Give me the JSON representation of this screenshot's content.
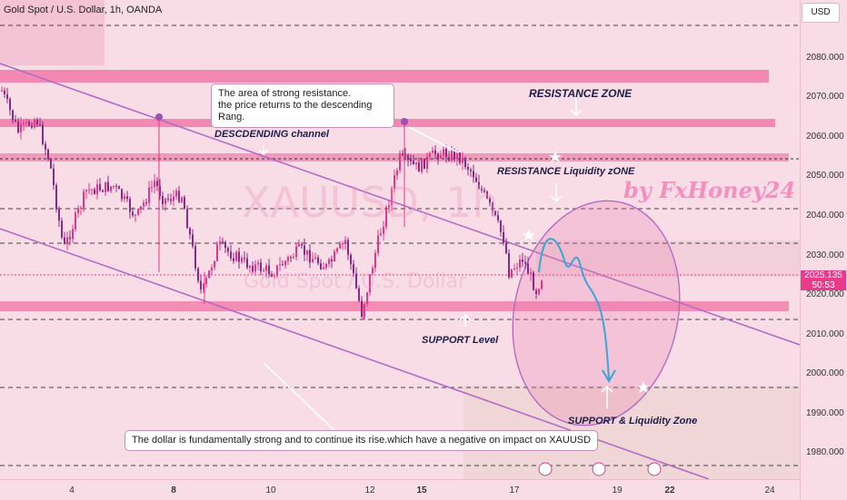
{
  "symbol_title": "Gold Spot / U.S. Dollar, 1h, OANDA",
  "currency": "USD",
  "price": {
    "value": "2025.135",
    "countdown": "50:53"
  },
  "watermark": {
    "symbol": "XAUUSD, 1h",
    "name": "Gold Spot / U.S. Dollar"
  },
  "brand": "by FxHoney24",
  "annotations": {
    "resistance_zone": "RESISTANCE ZONE",
    "descending_channel": "DESCDENDING channel",
    "resistance_liquidity": "RESISTANCE Liquidity zONE",
    "support_level": "SUPPORT Level",
    "support_liquidity": "SUPPORT & Liquidity Zone"
  },
  "callouts": {
    "top": [
      "The area of strong resistance.",
      "the price returns to the descending Rang."
    ],
    "bottom": "The dollar is fundamentally strong and to continue its rise.which have a negative on impact on XAUUSD"
  },
  "y_axis": [
    "2080.000",
    "2070.000",
    "2060.000",
    "2050.000",
    "2040.000",
    "2030.000",
    "2020.000",
    "2010.000",
    "2000.000",
    "1990.000",
    "1980.000"
  ],
  "x_axis": [
    {
      "label": "4",
      "bold": false
    },
    {
      "label": "8",
      "bold": true
    },
    {
      "label": "10",
      "bold": false
    },
    {
      "label": "12",
      "bold": false
    },
    {
      "label": "15",
      "bold": true
    },
    {
      "label": "17",
      "bold": false
    },
    {
      "label": "19",
      "bold": false
    },
    {
      "label": "22",
      "bold": true
    },
    {
      "label": "24",
      "bold": false
    }
  ],
  "colors": {
    "zone": "#f07aa8",
    "channel": "#b36bc4",
    "candle_up": "#e8338a",
    "candle_down": "#8a2a86",
    "projection": "#3aa6d6"
  }
}
